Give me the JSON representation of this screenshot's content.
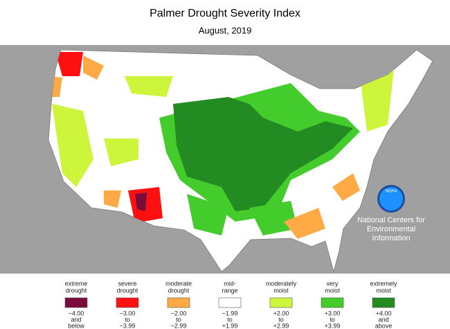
{
  "header": {
    "title": "Palmer Drought Severity Index",
    "subtitle": "August, 2019"
  },
  "logo": {
    "text": "NOAA",
    "org": [
      "National Centers for",
      "Environmental",
      "Information"
    ]
  },
  "legend": [
    {
      "label": [
        "extreme",
        "drought"
      ],
      "color": "#7a0c3c",
      "range": [
        "−4.00",
        "and",
        "below"
      ]
    },
    {
      "label": [
        "severe",
        "drought"
      ],
      "color": "#ff1010",
      "range": [
        "−3.00",
        "to",
        "−3.99"
      ]
    },
    {
      "label": [
        "moderate",
        "drought"
      ],
      "color": "#ffaa44",
      "range": [
        "−2.00",
        "to",
        "−2.99"
      ]
    },
    {
      "label": [
        "mid-",
        "range"
      ],
      "color": "#ffffff",
      "range": [
        "−1.99",
        "to",
        "+1.99"
      ]
    },
    {
      "label": [
        "moderately",
        "moist"
      ],
      "color": "#ccf53c",
      "range": [
        "+2.00",
        "to",
        "+2.99"
      ]
    },
    {
      "label": [
        "very",
        "moist"
      ],
      "color": "#44cc2c",
      "range": [
        "+3.00",
        "to",
        "+3.99"
      ]
    },
    {
      "label": [
        "extremely",
        "moist"
      ],
      "color": "#228b22",
      "range": [
        "+4.00",
        "and",
        "above"
      ]
    }
  ]
}
